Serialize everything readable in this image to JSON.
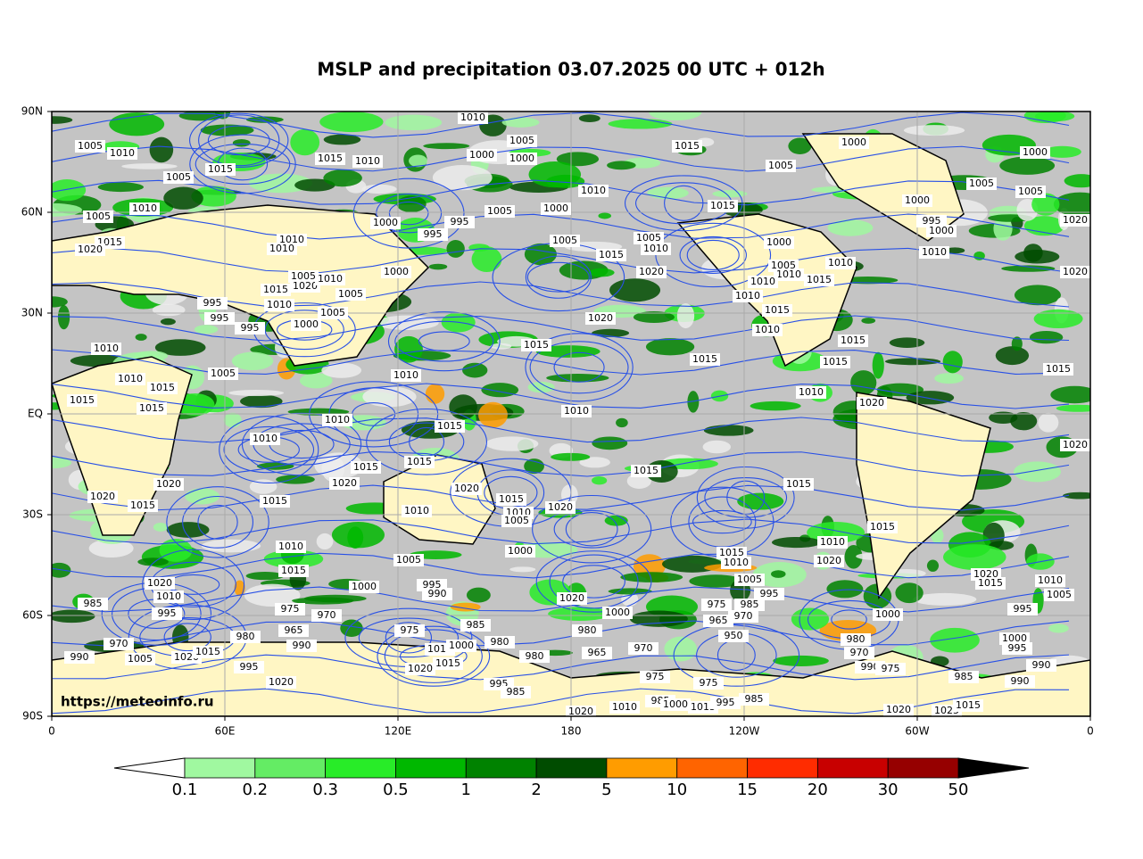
{
  "title": "MSLP and precipitation 03.07.2025 00 UTC + 012h",
  "x_axis": {
    "ticks": [
      "0",
      "60E",
      "120E",
      "180",
      "120W",
      "60W",
      "0"
    ]
  },
  "y_axis": {
    "ticks": [
      "90N",
      "60N",
      "30N",
      "EQ",
      "30S",
      "60S",
      "90S"
    ]
  },
  "watermark": "https://meteoinfo.ru",
  "colorbar": {
    "labels": [
      0.1,
      0.2,
      0.3,
      0.5,
      1,
      2,
      5,
      10,
      15,
      20,
      30,
      50
    ],
    "colors": [
      "#a0f8a0",
      "#64ec64",
      "#28ec28",
      "#00b800",
      "#008200",
      "#004c00",
      "#ff9c00",
      "#ff6400",
      "#ff2c00",
      "#c80000",
      "#960000"
    ]
  },
  "isobar_labels": [
    1010,
    1005,
    1010,
    1005,
    1015,
    1000,
    1000,
    1000,
    1015,
    1010,
    1015,
    1005,
    1005,
    1000,
    1005,
    1005,
    1010,
    1015,
    1000,
    1000,
    1010,
    1005,
    1000,
    995,
    995,
    1005,
    1005,
    1005,
    1010,
    1015,
    1000,
    995,
    1000,
    1020,
    1010,
    1010,
    1015,
    1020,
    1010,
    1020,
    1005,
    1010,
    1010,
    1015,
    1010,
    1010,
    1000,
    1020,
    1005,
    1020,
    1010,
    1005,
    1015,
    1010,
    1005,
    995,
    995,
    995,
    1000,
    1020,
    1015,
    1010,
    1015,
    1015,
    1015,
    1015,
    1010,
    1010,
    1015,
    1005,
    1015,
    1010,
    1015,
    1010,
    1020,
    1010,
    1015,
    1010,
    1015,
    1010,
    1020,
    1015,
    1015,
    1015,
    1020,
    1020,
    1020,
    1015,
    1020,
    1015,
    1015,
    1015,
    1010,
    1005,
    1020,
    1010,
    1015,
    1010,
    1010,
    1000,
    1015,
    1010,
    1020,
    1005,
    1015,
    1005,
    995,
    1000,
    995,
    990,
    1020,
    1010,
    1020,
    1015,
    1010,
    1005,
    985,
    995,
    975,
    970,
    965,
    975,
    985,
    970,
    965,
    950,
    1000,
    995,
    1000,
    1020,
    985,
    975,
    980,
    980,
    990,
    980,
    970,
    970,
    965,
    980,
    970,
    1000,
    995,
    990,
    1005,
    1020,
    1015,
    1010,
    1000,
    1015,
    1020,
    995,
    980,
    990,
    975,
    985,
    990,
    990,
    975,
    975,
    1020,
    995,
    985,
    985,
    1000,
    1015,
    995,
    985,
    1010,
    1020,
    1020,
    1025,
    1015
  ]
}
